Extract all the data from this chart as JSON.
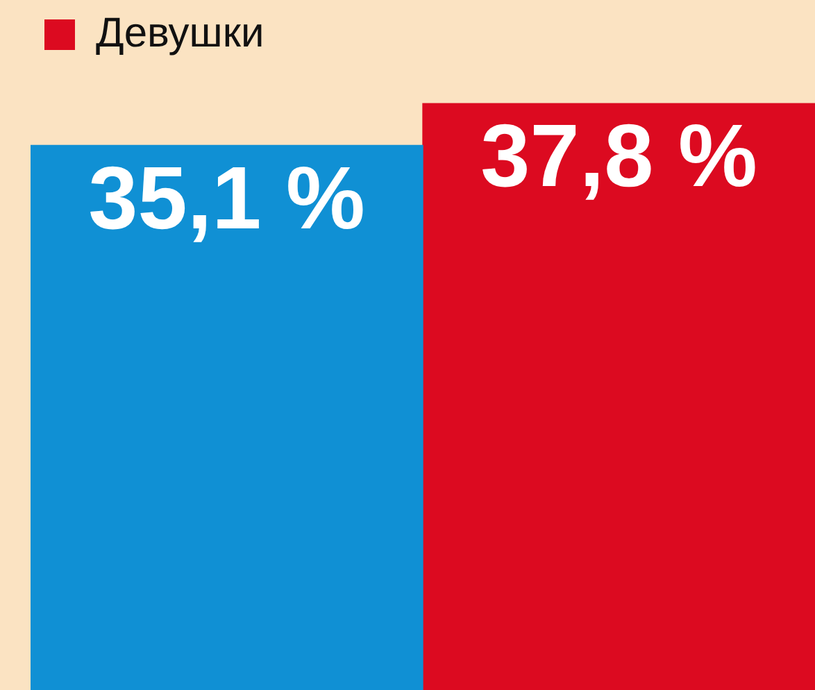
{
  "chart_data": {
    "type": "bar",
    "categories": [
      null
    ],
    "series": [
      {
        "color": "#1090d4",
        "values": [
          35.1
        ],
        "value_labels": [
          "35,1 %"
        ]
      },
      {
        "name": "Девушки",
        "color": "#dc0a20",
        "values": [
          37.8
        ],
        "value_labels": [
          "37,8 %"
        ]
      }
    ],
    "legend": "top left"
  }
}
